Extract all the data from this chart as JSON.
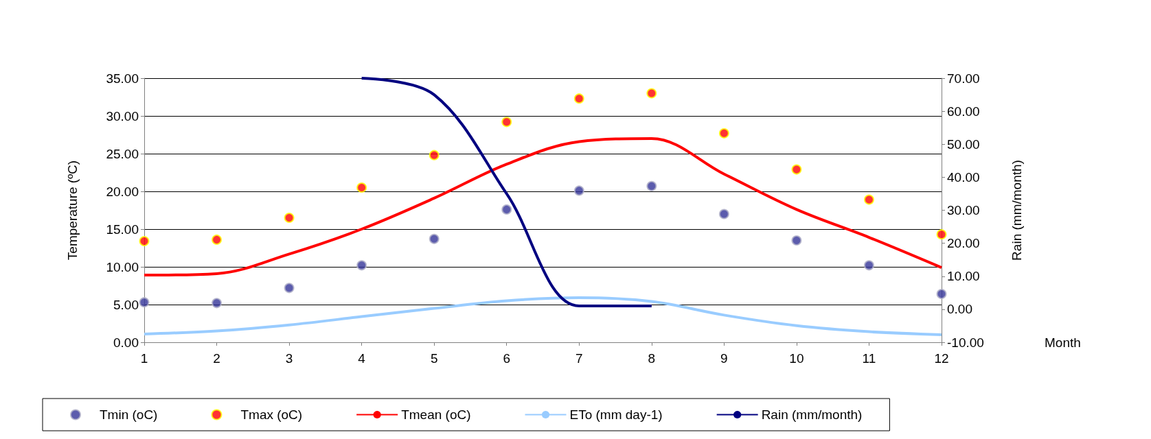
{
  "chart_data": {
    "type": "scatter",
    "xlabel": "Month",
    "ylabel": "Temperature (ºC)",
    "y2label": "Rain (mm/month)",
    "x": [
      1,
      2,
      3,
      4,
      5,
      6,
      7,
      8,
      9,
      10,
      11,
      12
    ],
    "series": [
      {
        "name": "Tmin (oC)",
        "type": "scatter",
        "marker": "circle",
        "color": "#333399",
        "values": [
          5.3,
          5.2,
          7.2,
          10.2,
          13.7,
          17.6,
          20.1,
          20.7,
          17.0,
          13.5,
          10.2,
          6.4
        ]
      },
      {
        "name": "Tmax (oC)",
        "type": "scatter",
        "marker": "circle",
        "color": "#ff0000",
        "values": [
          13.4,
          13.6,
          16.5,
          20.5,
          24.8,
          29.2,
          32.3,
          33.0,
          27.7,
          22.9,
          18.9,
          14.3
        ]
      },
      {
        "name": "Tmean (oC)",
        "type": "line",
        "marker": "none",
        "color": "#ff0000",
        "values": [
          8.9,
          9.1,
          11.7,
          15.0,
          19.1,
          23.6,
          26.6,
          27.0,
          22.3,
          17.6,
          13.9,
          9.9
        ]
      },
      {
        "name": "ETo (mm day-1)",
        "type": "line",
        "marker": "none",
        "color": "#99ccff",
        "values": [
          1.1,
          1.5,
          2.3,
          3.4,
          4.5,
          5.5,
          5.9,
          5.4,
          3.6,
          2.2,
          1.4,
          1.0
        ]
      },
      {
        "name": "Rain (mm/month)",
        "type": "line",
        "marker": "none",
        "axis": "y2",
        "color": "#000080",
        "values": [
          null,
          null,
          null,
          70,
          65,
          35,
          1,
          1,
          null,
          null,
          null,
          null
        ]
      }
    ],
    "xlim": [
      1,
      12
    ],
    "xticks": [
      1,
      2,
      3,
      4,
      5,
      6,
      7,
      8,
      9,
      10,
      11,
      12
    ],
    "ylim": [
      0,
      35
    ],
    "yticks": [
      {
        "value": 0,
        "label": "0.00"
      },
      {
        "value": 5,
        "label": "5.00"
      },
      {
        "value": 10,
        "label": "10.00"
      },
      {
        "value": 15,
        "label": "15.00"
      },
      {
        "value": 20,
        "label": "20.00"
      },
      {
        "value": 25,
        "label": "25.00"
      },
      {
        "value": 30,
        "label": "30.00"
      },
      {
        "value": 35,
        "label": "35.00"
      }
    ],
    "y2lim": [
      -10,
      70
    ],
    "y2ticks": [
      {
        "value": -10,
        "label": "-10.00"
      },
      {
        "value": 0,
        "label": "0.00"
      },
      {
        "value": 10,
        "label": "10.00"
      },
      {
        "value": 20,
        "label": "20.00"
      },
      {
        "value": 30,
        "label": "30.00"
      },
      {
        "value": 40,
        "label": "40.00"
      },
      {
        "value": 50,
        "label": "50.00"
      },
      {
        "value": 60,
        "label": "60.00"
      },
      {
        "value": 70,
        "label": "70.00"
      }
    ],
    "grid": "y",
    "legend": "bottom"
  }
}
